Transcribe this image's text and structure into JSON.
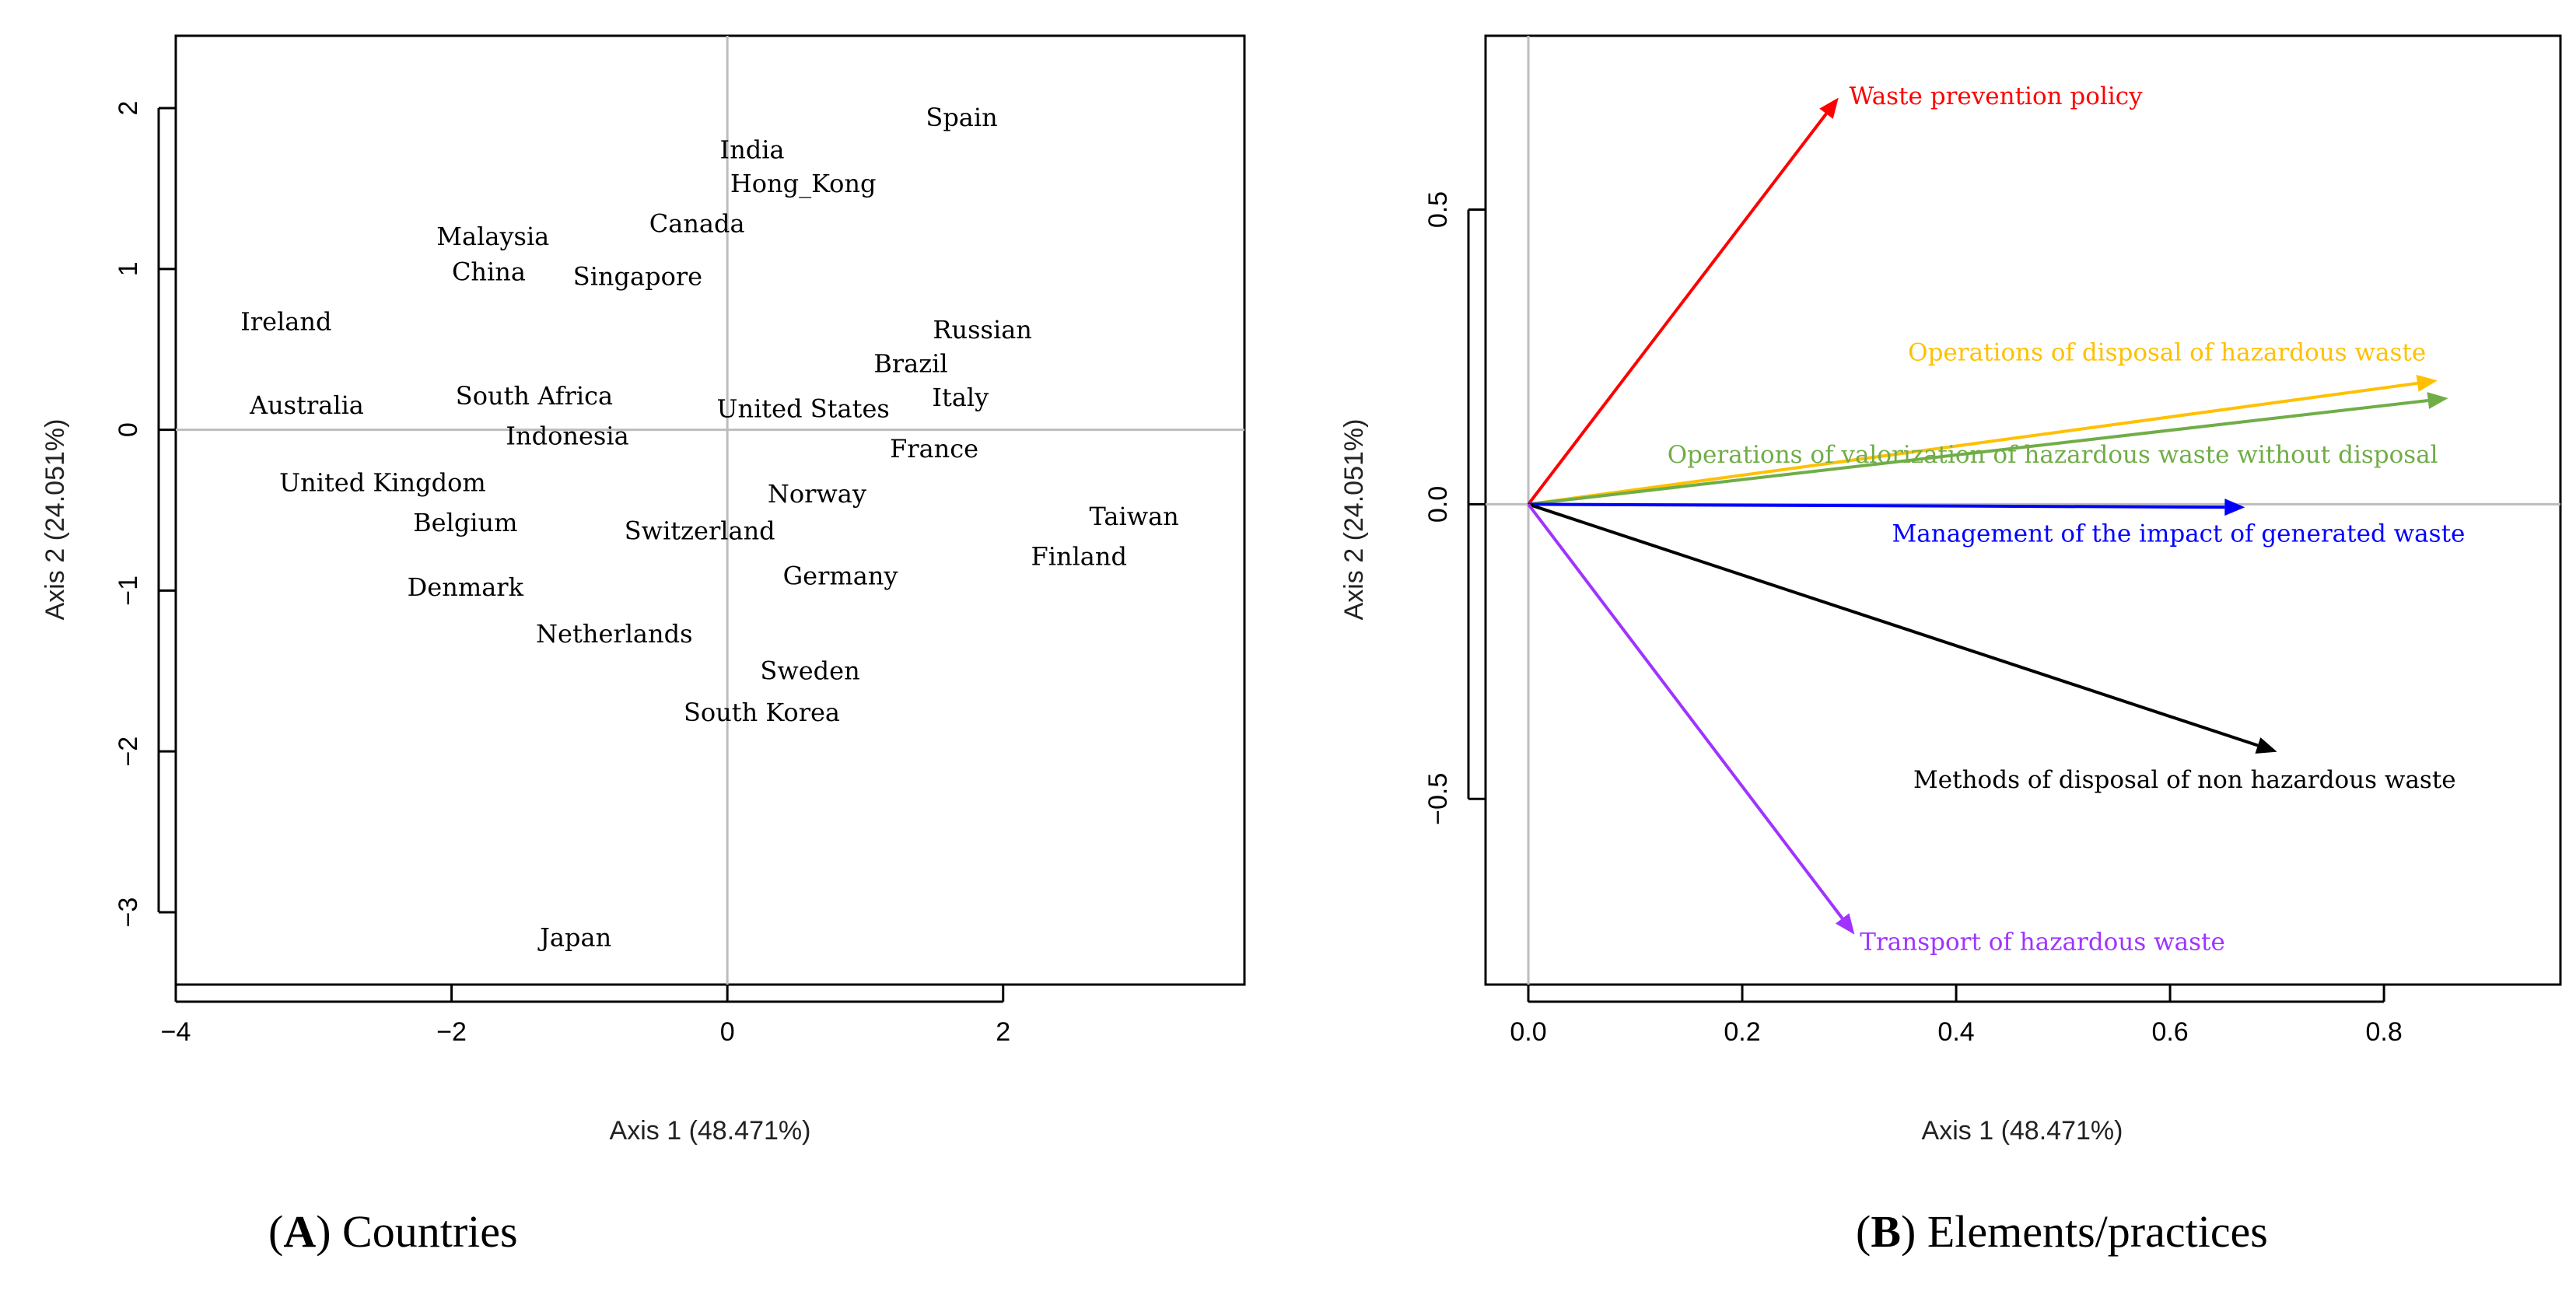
{
  "chart_data": [
    {
      "id": "A",
      "type": "scatter",
      "panel_letter": "A",
      "panel_caption": "Countries",
      "xlabel": "Axis 1 (48.471%)",
      "ylabel": "Axis 2 (24.051%)",
      "xlim": [
        -4.0,
        3.75
      ],
      "ylim": [
        -3.45,
        2.45
      ],
      "xticks": [
        -4,
        -2,
        0,
        2
      ],
      "yticks": [
        -3,
        -2,
        -1,
        0,
        1,
        2
      ],
      "reference_lines": {
        "x": 0,
        "y": 0
      },
      "points": [
        {
          "label": "Spain",
          "x": 1.7,
          "y": 1.93
        },
        {
          "label": "India",
          "x": 0.18,
          "y": 1.73
        },
        {
          "label": "Hong_Kong",
          "x": 0.55,
          "y": 1.52
        },
        {
          "label": "Canada",
          "x": -0.22,
          "y": 1.27
        },
        {
          "label": "Malaysia",
          "x": -1.7,
          "y": 1.19
        },
        {
          "label": "China",
          "x": -1.73,
          "y": 0.97
        },
        {
          "label": "Singapore",
          "x": -0.65,
          "y": 0.94
        },
        {
          "label": "Ireland",
          "x": -3.2,
          "y": 0.66
        },
        {
          "label": "Russian",
          "x": 1.85,
          "y": 0.61
        },
        {
          "label": "Brazil",
          "x": 1.33,
          "y": 0.4
        },
        {
          "label": "Italy",
          "x": 1.69,
          "y": 0.19
        },
        {
          "label": "Australia",
          "x": -3.05,
          "y": 0.14
        },
        {
          "label": "South Africa",
          "x": -1.4,
          "y": 0.2
        },
        {
          "label": "United States",
          "x": 0.55,
          "y": 0.12
        },
        {
          "label": "Indonesia",
          "x": -1.16,
          "y": -0.05
        },
        {
          "label": "France",
          "x": 1.5,
          "y": -0.13
        },
        {
          "label": "United Kingdom",
          "x": -2.5,
          "y": -0.34
        },
        {
          "label": "Norway",
          "x": 0.65,
          "y": -0.41
        },
        {
          "label": "Belgium",
          "x": -1.9,
          "y": -0.59
        },
        {
          "label": "Switzerland",
          "x": -0.2,
          "y": -0.64
        },
        {
          "label": "Taiwan",
          "x": 2.95,
          "y": -0.55
        },
        {
          "label": "Finland",
          "x": 2.55,
          "y": -0.8
        },
        {
          "label": "Germany",
          "x": 0.82,
          "y": -0.92
        },
        {
          "label": "Denmark",
          "x": -1.9,
          "y": -0.99
        },
        {
          "label": "Netherlands",
          "x": -0.82,
          "y": -1.28
        },
        {
          "label": "Sweden",
          "x": 0.6,
          "y": -1.51
        },
        {
          "label": "South Korea",
          "x": 0.25,
          "y": -1.77
        },
        {
          "label": "Japan",
          "x": -1.1,
          "y": -3.17
        }
      ]
    },
    {
      "id": "B",
      "type": "vector",
      "panel_letter": "B",
      "panel_caption": "Elements/practices",
      "xlabel": "Axis 1 (48.471%)",
      "ylabel": "Axis 2 (24.051%)",
      "xlim": [
        -0.04,
        0.965
      ],
      "ylim": [
        -0.815,
        0.795
      ],
      "xticks": [
        0.0,
        0.2,
        0.4,
        0.6,
        0.8
      ],
      "yticks": [
        -0.5,
        0.0,
        0.5
      ],
      "reference_lines": {
        "x": 0,
        "y": 0
      },
      "arrows": [
        {
          "label": "Waste prevention policy",
          "x": 0.29,
          "y": 0.69,
          "color": "#ff0000",
          "label_x": 0.3,
          "label_y": 0.69
        },
        {
          "label": "Operations of disposal of hazardous waste",
          "x": 0.85,
          "y": 0.21,
          "color": "#ffc000",
          "label_x": 0.355,
          "label_y": 0.255
        },
        {
          "label": "Operations of valorization of hazardous waste without disposal",
          "x": 0.86,
          "y": 0.18,
          "color": "#70ad47",
          "label_x": 0.13,
          "label_y": 0.082
        },
        {
          "label": "Management of the impact of generated waste",
          "x": 0.67,
          "y": -0.005,
          "color": "#0000ff",
          "label_x": 0.34,
          "label_y": -0.052
        },
        {
          "label": "Methods of disposal of non hazardous waste",
          "x": 0.7,
          "y": -0.42,
          "color": "#000000",
          "label_x": 0.36,
          "label_y": -0.47
        },
        {
          "label": "Transport of hazardous waste",
          "x": 0.305,
          "y": -0.73,
          "color": "#a033ff",
          "label_x": 0.31,
          "label_y": -0.745
        }
      ]
    }
  ]
}
